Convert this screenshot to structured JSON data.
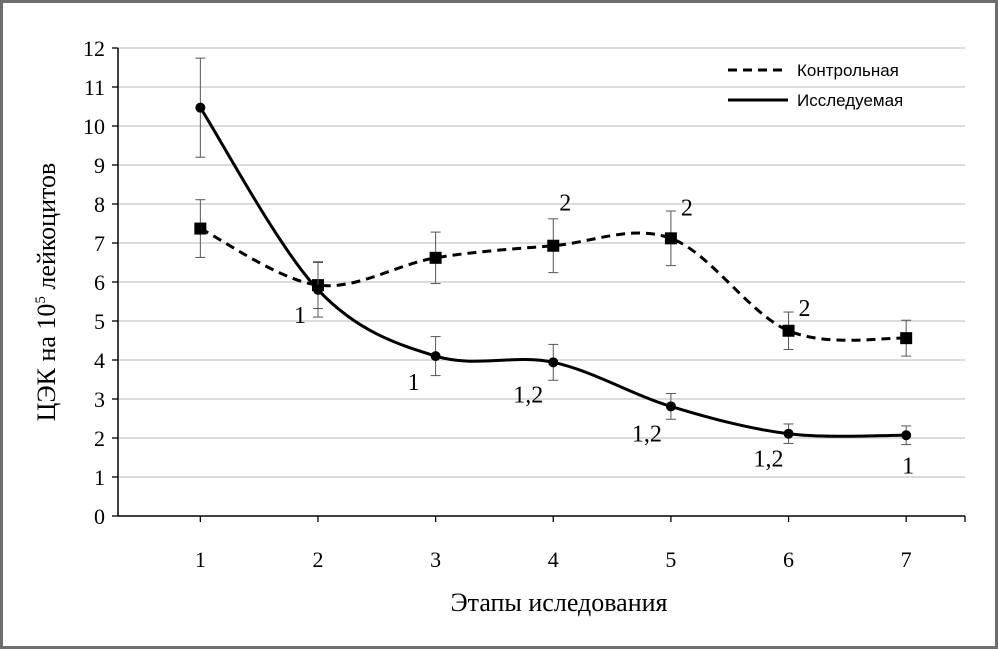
{
  "chart_data": {
    "type": "line",
    "x": [
      1,
      2,
      3,
      4,
      5,
      6,
      7
    ],
    "xticks": [
      "1",
      "2",
      "3",
      "4",
      "5",
      "6",
      "7"
    ],
    "xlabel": "Этапы иследования",
    "ylabel_main": "ЦЭК на 10",
    "ylabel_sup": "5",
    "ylabel_rest": " лейкоцитов",
    "ylim": [
      0,
      12
    ],
    "yticks": [
      0,
      1,
      2,
      3,
      4,
      5,
      6,
      7,
      8,
      9,
      10,
      11,
      12
    ],
    "xlim": [
      0.3,
      7.5
    ],
    "grid": true,
    "legend_position": "top-right",
    "series": [
      {
        "name": "Контрольная",
        "style": "dashed",
        "marker": "square",
        "values": [
          7.37,
          5.92,
          6.62,
          6.93,
          7.12,
          4.75,
          4.56
        ],
        "err": [
          0.74,
          0.6,
          0.66,
          0.69,
          0.7,
          0.48,
          0.46
        ],
        "annotations": [
          "",
          "",
          "",
          "2",
          "2",
          "2",
          ""
        ]
      },
      {
        "name": "Исследуемая",
        "style": "solid",
        "marker": "circle",
        "values": [
          10.47,
          5.8,
          4.1,
          3.94,
          2.81,
          2.11,
          2.07
        ],
        "err": [
          1.27,
          0.7,
          0.5,
          0.46,
          0.33,
          0.25,
          0.24
        ],
        "annotations": [
          "",
          "1",
          "1",
          "1,2",
          "1,2",
          "1,2",
          "1"
        ]
      }
    ],
    "colors": {
      "line": "#000000",
      "grid": "#c8c8c8",
      "error_bar": "#555555"
    }
  }
}
